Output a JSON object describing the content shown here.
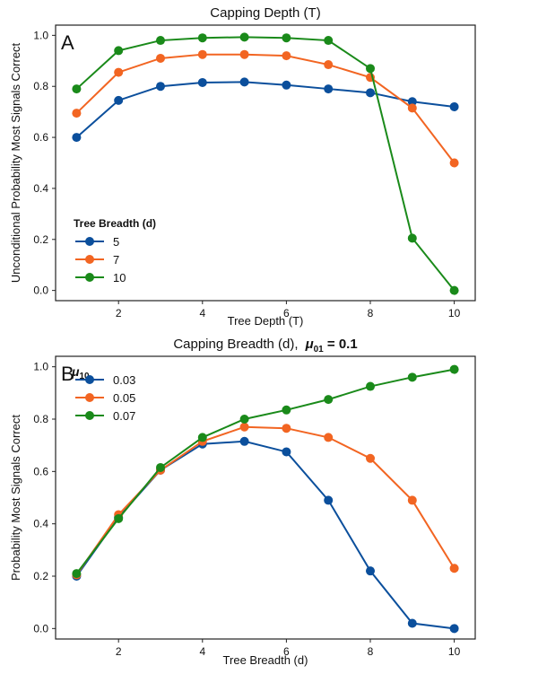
{
  "chart_data": [
    {
      "type": "line",
      "panel_label": "A",
      "title": "Capping Depth (T)",
      "xlabel": "Tree Depth (T)",
      "ylabel": "Unconditional Probability Most Signals Correct",
      "xlim": [
        0.5,
        10.5
      ],
      "ylim": [
        -0.04,
        1.04
      ],
      "xticks": [
        "2",
        "4",
        "6",
        "8",
        "10"
      ],
      "yticks": [
        "0.0",
        "0.2",
        "0.4",
        "0.6",
        "0.8",
        "1.0"
      ],
      "legend_title": "Tree Breadth (d)",
      "legend_position": "lower-left",
      "x": [
        1,
        2,
        3,
        4,
        5,
        6,
        7,
        8,
        9,
        10
      ],
      "series": [
        {
          "name": "5",
          "color": "#0b4f9c",
          "values": [
            0.6,
            0.745,
            0.8,
            0.815,
            0.817,
            0.805,
            0.79,
            0.775,
            0.74,
            0.72
          ]
        },
        {
          "name": "7",
          "color": "#f26522",
          "values": [
            0.695,
            0.855,
            0.91,
            0.925,
            0.925,
            0.92,
            0.885,
            0.835,
            0.715,
            0.5
          ]
        },
        {
          "name": "10",
          "color": "#1a8a1a",
          "values": [
            0.79,
            0.94,
            0.98,
            0.99,
            0.993,
            0.99,
            0.98,
            0.87,
            0.205,
            0.0
          ]
        }
      ]
    },
    {
      "type": "line",
      "panel_label": "B",
      "title": "Capping Breadth (d),",
      "title_math": "μ01 = 0.1",
      "title_math_base": "μ",
      "title_math_sub": "01",
      "title_math_rest": " = 0.1",
      "xlabel": "Tree Breadth (d)",
      "ylabel": "Probability Most Signals Correct",
      "xlim": [
        0.5,
        10.5
      ],
      "ylim": [
        -0.04,
        1.04
      ],
      "xticks": [
        "2",
        "4",
        "6",
        "8",
        "10"
      ],
      "yticks": [
        "0.0",
        "0.2",
        "0.4",
        "0.6",
        "0.8",
        "1.0"
      ],
      "legend_title": "μ10",
      "legend_title_base": "μ",
      "legend_title_sub": "10",
      "legend_position": "upper-left",
      "x": [
        1,
        2,
        3,
        4,
        5,
        6,
        7,
        8,
        9,
        10
      ],
      "series": [
        {
          "name": "0.03",
          "color": "#0b4f9c",
          "values": [
            0.2,
            0.425,
            0.605,
            0.705,
            0.715,
            0.675,
            0.49,
            0.22,
            0.02,
            0.0
          ]
        },
        {
          "name": "0.05",
          "color": "#f26522",
          "values": [
            0.205,
            0.435,
            0.605,
            0.715,
            0.77,
            0.765,
            0.73,
            0.65,
            0.49,
            0.23
          ]
        },
        {
          "name": "0.07",
          "color": "#1a8a1a",
          "values": [
            0.21,
            0.42,
            0.615,
            0.73,
            0.8,
            0.835,
            0.875,
            0.925,
            0.96,
            0.99
          ]
        }
      ]
    }
  ]
}
